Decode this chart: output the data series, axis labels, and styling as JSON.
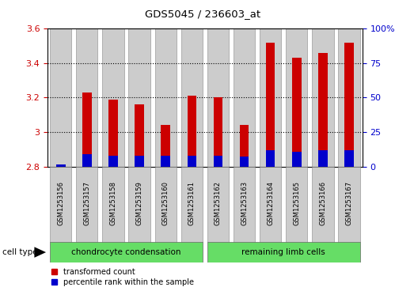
{
  "title": "GDS5045 / 236603_at",
  "samples": [
    "GSM1253156",
    "GSM1253157",
    "GSM1253158",
    "GSM1253159",
    "GSM1253160",
    "GSM1253161",
    "GSM1253162",
    "GSM1253163",
    "GSM1253164",
    "GSM1253165",
    "GSM1253166",
    "GSM1253167"
  ],
  "red_values": [
    2.81,
    3.23,
    3.19,
    3.16,
    3.04,
    3.21,
    3.2,
    3.04,
    3.52,
    3.43,
    3.46,
    3.52
  ],
  "blue_values_abs": [
    2.813,
    2.873,
    2.863,
    2.863,
    2.863,
    2.863,
    2.863,
    2.856,
    2.893,
    2.886,
    2.893,
    2.893
  ],
  "ymin": 2.8,
  "ymax": 3.6,
  "yticks_left": [
    2.8,
    3.0,
    3.2,
    3.4,
    3.6
  ],
  "yticks_right": [
    0,
    25,
    50,
    75,
    100
  ],
  "ytick_labels_left": [
    "2.8",
    "3",
    "3.2",
    "3.4",
    "3.6"
  ],
  "ytick_labels_right": [
    "0",
    "25",
    "50",
    "75",
    "100%"
  ],
  "group1_label": "chondrocyte condensation",
  "group2_label": "remaining limb cells",
  "group1_indices": [
    0,
    1,
    2,
    3,
    4,
    5
  ],
  "group2_indices": [
    6,
    7,
    8,
    9,
    10,
    11
  ],
  "group_color": "#66dd66",
  "cell_type_label": "cell type",
  "legend_red": "transformed count",
  "legend_blue": "percentile rank within the sample",
  "bar_width": 0.35,
  "red_color": "#cc0000",
  "blue_color": "#0000cc",
  "tick_label_color_left": "#cc0000",
  "tick_label_color_right": "#0000cc",
  "bar_bg_color": "#cccccc",
  "dotted_lines": [
    3.0,
    3.2,
    3.4
  ]
}
